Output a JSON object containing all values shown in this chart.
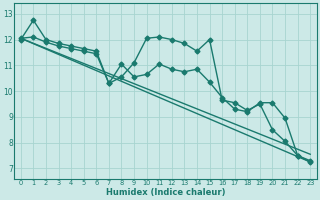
{
  "xlabel": "Humidex (Indice chaleur)",
  "xlim": [
    -0.5,
    23.5
  ],
  "ylim": [
    6.6,
    13.4
  ],
  "yticks": [
    7,
    8,
    9,
    10,
    11,
    12,
    13
  ],
  "xticks": [
    0,
    1,
    2,
    3,
    4,
    5,
    6,
    7,
    8,
    9,
    10,
    11,
    12,
    13,
    14,
    15,
    16,
    17,
    18,
    19,
    20,
    21,
    22,
    23
  ],
  "bg_color": "#cce9e7",
  "grid_color": "#a8d4d0",
  "line_color": "#1a7a6e",
  "lines": [
    {
      "x": [
        0,
        1,
        2,
        3,
        4,
        5,
        6,
        7,
        8,
        9,
        10,
        11,
        12,
        13,
        14,
        15,
        16,
        17,
        18,
        19,
        20,
        21,
        22,
        23
      ],
      "y": [
        12.0,
        12.75,
        12.0,
        11.85,
        11.75,
        11.65,
        11.55,
        10.3,
        10.55,
        11.1,
        12.05,
        12.1,
        12.0,
        11.85,
        11.55,
        12.0,
        9.65,
        9.55,
        9.25,
        9.5,
        8.5,
        8.05,
        7.5,
        7.25
      ],
      "marker": "D",
      "markersize": 2.5,
      "linewidth": 1.0
    },
    {
      "x": [
        0,
        1,
        2,
        3,
        4,
        5,
        6,
        7,
        8,
        9,
        10,
        11,
        12,
        13,
        14,
        15,
        16,
        17,
        18,
        19,
        20,
        21,
        22,
        23
      ],
      "y": [
        12.05,
        12.1,
        11.9,
        11.75,
        11.65,
        11.55,
        11.45,
        10.3,
        11.05,
        10.55,
        10.65,
        11.05,
        10.85,
        10.75,
        10.85,
        10.35,
        9.75,
        9.3,
        9.2,
        9.55,
        9.55,
        8.95,
        7.5,
        7.3
      ],
      "marker": "D",
      "markersize": 2.5,
      "linewidth": 1.0
    },
    {
      "x": [
        0,
        23
      ],
      "y": [
        12.05,
        7.55
      ],
      "marker": null,
      "linewidth": 1.0
    },
    {
      "x": [
        0,
        23
      ],
      "y": [
        12.05,
        7.25
      ],
      "marker": null,
      "linewidth": 1.0
    }
  ]
}
